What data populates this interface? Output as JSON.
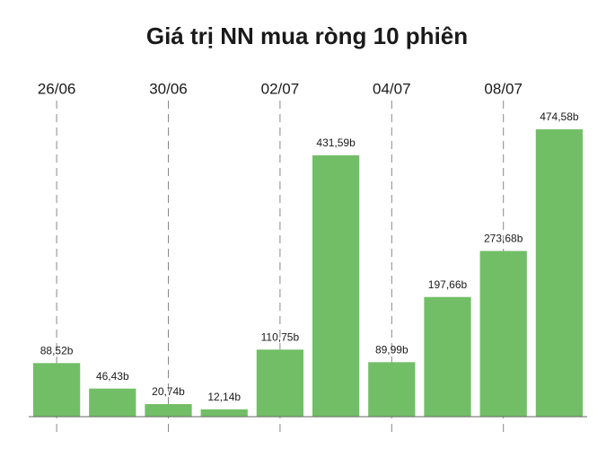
{
  "chart_data": {
    "type": "bar",
    "title": "Giá trị NN mua ròng 10 phiên",
    "categories": [
      "26/06",
      null,
      "30/06",
      null,
      "02/07",
      null,
      "04/07",
      null,
      "08/07",
      null
    ],
    "values": [
      88.52,
      46.43,
      20.74,
      12.14,
      110.75,
      431.59,
      89.99,
      197.66,
      273.68,
      474.58
    ],
    "value_labels": [
      "88,52b",
      "46,43b",
      "20,74b",
      "12,14b",
      "110,75b",
      "431,59b",
      "89,99b",
      "197,66b",
      "273,68b",
      "474,58b"
    ],
    "color": "#72be67"
  }
}
